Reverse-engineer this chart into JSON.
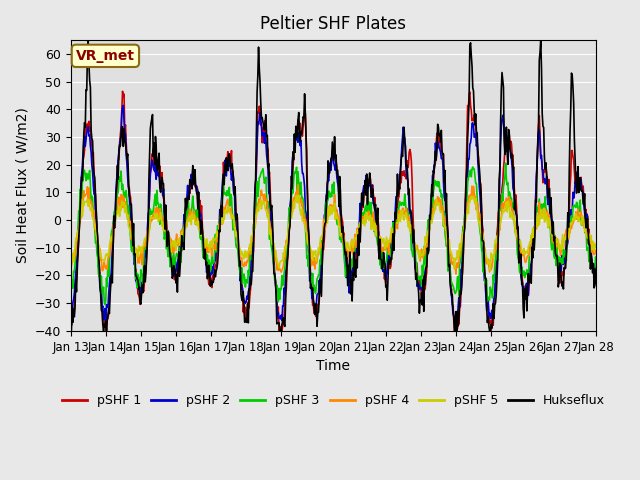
{
  "title": "Peltier SHF Plates",
  "xlabel": "Time",
  "ylabel": "Soil Heat Flux ( W/m2)",
  "ylim": [
    -40,
    65
  ],
  "yticks": [
    -40,
    -30,
    -20,
    -10,
    0,
    10,
    20,
    30,
    40,
    50,
    60
  ],
  "background_color": "#e8e8e8",
  "plot_bg_color": "#e0e0e0",
  "annotation_text": "VR_met",
  "annotation_color": "#8B0000",
  "annotation_bg": "#ffffcc",
  "series_colors": {
    "pSHF 1": "#cc0000",
    "pSHF 2": "#0000cc",
    "pSHF 3": "#00cc00",
    "pSHF 4": "#ff8800",
    "pSHF 5": "#cccc00",
    "Hukseflux": "#000000"
  },
  "xtick_labels": [
    "Jan 13",
    "Jan 14",
    "Jan 15",
    "Jan 16",
    "Jan 17",
    "Jan 18",
    "Jan 19",
    "Jan 20",
    "Jan 21",
    "Jan 22",
    "Jan 23",
    "Jan 24",
    "Jan 25",
    "Jan 26",
    "Jan 27",
    "Jan 28"
  ],
  "n_days": 15,
  "points_per_day": 48
}
